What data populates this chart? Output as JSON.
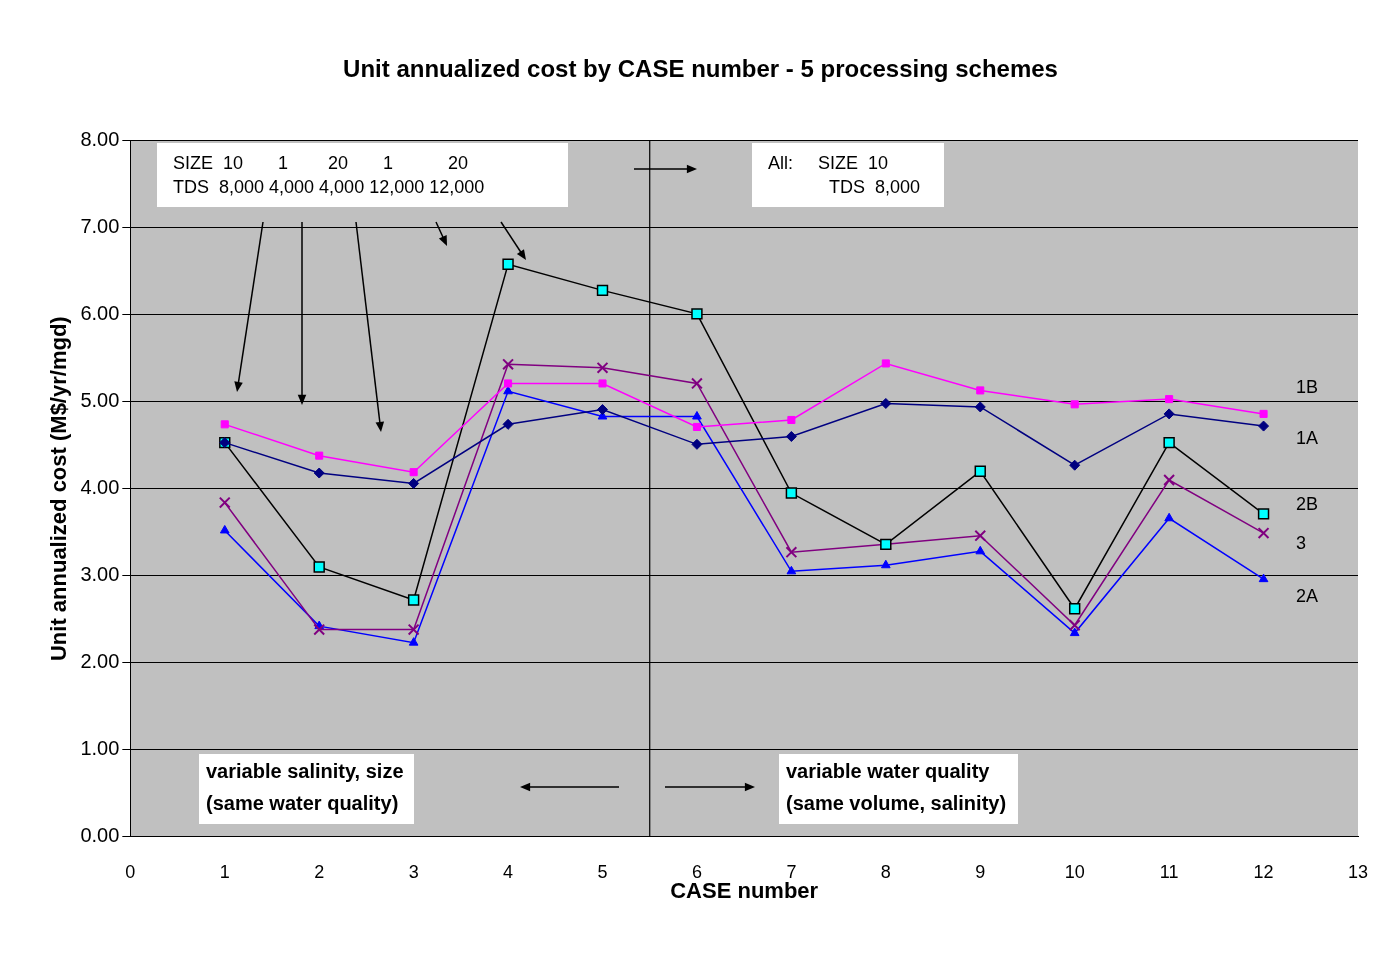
{
  "chart_data": {
    "type": "line",
    "title": "Unit annualized cost by CASE number - 5 processing schemes",
    "xlabel": "CASE number",
    "ylabel": "Unit annualized cost (M$/yr/mgd)",
    "x": [
      1,
      2,
      3,
      4,
      5,
      6,
      7,
      8,
      9,
      10,
      11,
      12
    ],
    "xlim": [
      0,
      13
    ],
    "xticks": [
      0,
      1,
      2,
      3,
      4,
      5,
      6,
      7,
      8,
      9,
      10,
      11,
      12,
      13
    ],
    "ylim": [
      0,
      8
    ],
    "yticks": [
      {
        "value": 0,
        "label": "0.00"
      },
      {
        "value": 1,
        "label": "1.00"
      },
      {
        "value": 2,
        "label": "2.00"
      },
      {
        "value": 3,
        "label": "3.00"
      },
      {
        "value": 4,
        "label": "4.00"
      },
      {
        "value": 5,
        "label": "5.00"
      },
      {
        "value": 6,
        "label": "6.00"
      },
      {
        "value": 7,
        "label": "7.00"
      },
      {
        "value": 8,
        "label": "8.00"
      }
    ],
    "grid": "y",
    "legend": false,
    "series": [
      {
        "name": "1B",
        "color": "#ff00ff",
        "marker": "square",
        "values": [
          4.74,
          4.38,
          4.19,
          5.21,
          5.21,
          4.71,
          4.79,
          5.44,
          5.13,
          4.97,
          5.03,
          4.86
        ]
      },
      {
        "name": "1A",
        "color": "#000080",
        "marker": "diamond",
        "values": [
          4.53,
          4.18,
          4.06,
          4.74,
          4.91,
          4.51,
          4.6,
          4.98,
          4.94,
          4.27,
          4.86,
          4.72
        ]
      },
      {
        "name": "2B",
        "color": "#000000",
        "marker": "square",
        "values": [
          4.53,
          3.1,
          2.72,
          6.58,
          6.28,
          6.01,
          3.95,
          3.36,
          4.2,
          2.62,
          4.53,
          3.71
        ]
      },
      {
        "name": "3",
        "color": "#800080",
        "marker": "cross",
        "values": [
          3.84,
          2.38,
          2.38,
          5.43,
          5.39,
          5.21,
          3.27,
          3.36,
          3.46,
          2.43,
          4.1,
          3.49
        ]
      },
      {
        "name": "2A",
        "color": "#0000ff",
        "marker": "triangle",
        "values": [
          3.52,
          2.42,
          2.23,
          5.12,
          4.83,
          4.83,
          3.05,
          3.12,
          3.28,
          2.34,
          3.66,
          2.96
        ]
      }
    ],
    "ref_lines": [
      {
        "axis": "x",
        "value": 5.5,
        "color": "#000000"
      }
    ],
    "annotations": [
      "SIZE  10       1        20       1           20",
      "TDS  8,000 4,000 4,000 12,000 12,000",
      "All:     SIZE  10",
      "TDS  8,000",
      "variable salinity, size",
      "(same water quality)",
      "variable water quality",
      "(same volume, salinity)"
    ]
  }
}
